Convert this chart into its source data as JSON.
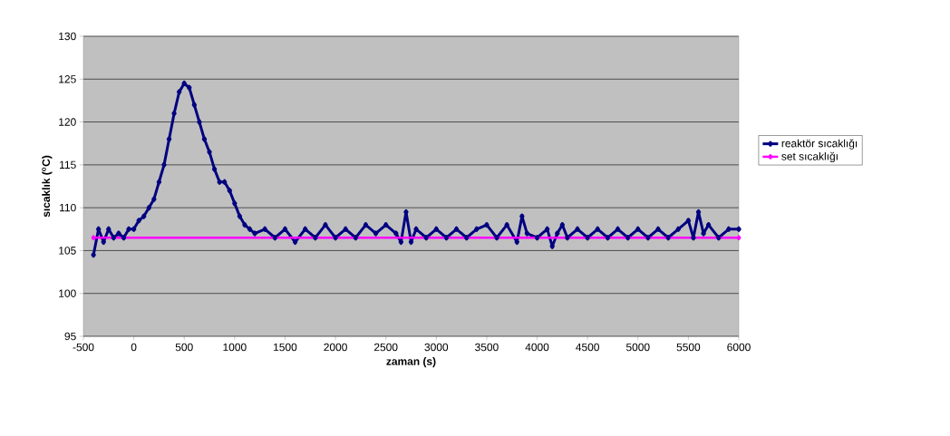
{
  "chart_data": {
    "type": "line",
    "xlabel": "zaman (s)",
    "ylabel": "sıcaklık ($^{o}$C)",
    "xlim": [
      -500,
      6000
    ],
    "xticks": [
      -500,
      0,
      500,
      1000,
      1500,
      2000,
      2500,
      3000,
      3500,
      4000,
      4500,
      5000,
      5500,
      6000
    ],
    "ylim": [
      95,
      130
    ],
    "yticks": [
      95,
      100,
      105,
      110,
      115,
      120,
      125,
      130
    ],
    "grid": "y",
    "legend": "right",
    "marker": "diamond",
    "line_style": "solid",
    "series": [
      {
        "name": "reaktör sıcaklığı",
        "color": "#000080",
        "x": [
          -400,
          -350,
          -300,
          -250,
          -200,
          -150,
          -100,
          -50,
          0,
          50,
          100,
          150,
          200,
          250,
          300,
          350,
          400,
          450,
          500,
          550,
          600,
          650,
          700,
          750,
          800,
          850,
          900,
          950,
          1000,
          1050,
          1100,
          1150,
          1200,
          1300,
          1400,
          1500,
          1600,
          1700,
          1800,
          1900,
          2000,
          2100,
          2200,
          2300,
          2400,
          2500,
          2600,
          2650,
          2700,
          2750,
          2800,
          2900,
          3000,
          3100,
          3200,
          3300,
          3400,
          3500,
          3600,
          3700,
          3800,
          3850,
          3900,
          4000,
          4100,
          4150,
          4200,
          4250,
          4300,
          4400,
          4500,
          4600,
          4700,
          4800,
          4900,
          5000,
          5100,
          5200,
          5300,
          5400,
          5500,
          5550,
          5600,
          5650,
          5700,
          5800,
          5900,
          6000
        ],
        "values": [
          104.5,
          107.5,
          106,
          107.5,
          106.5,
          107,
          106.5,
          107.5,
          107.5,
          108.5,
          109,
          110,
          111,
          113,
          115,
          118,
          121,
          123.5,
          124.5,
          124,
          122,
          120,
          118,
          116.5,
          114.5,
          113,
          113,
          112,
          110.5,
          109,
          108,
          107.5,
          107,
          107.5,
          106.5,
          107.5,
          106,
          107.5,
          106.5,
          108,
          106.5,
          107.5,
          106.5,
          108,
          107,
          108,
          107,
          106,
          109.5,
          106,
          107.5,
          106.5,
          107.5,
          106.5,
          107.5,
          106.5,
          107.5,
          108,
          106.5,
          108,
          106,
          109,
          107,
          106.5,
          107.5,
          105.5,
          107,
          108,
          106.5,
          107.5,
          106.5,
          107.5,
          106.5,
          107.5,
          106.5,
          107.5,
          106.5,
          107.5,
          106.5,
          107.5,
          108.5,
          106.5,
          109.5,
          107,
          108,
          106.5,
          107.5,
          107.5
        ]
      },
      {
        "name": "set sıcaklığı",
        "color": "#ff00ff",
        "x": [
          -400,
          6000
        ],
        "values": [
          106.5,
          106.5
        ]
      }
    ]
  }
}
